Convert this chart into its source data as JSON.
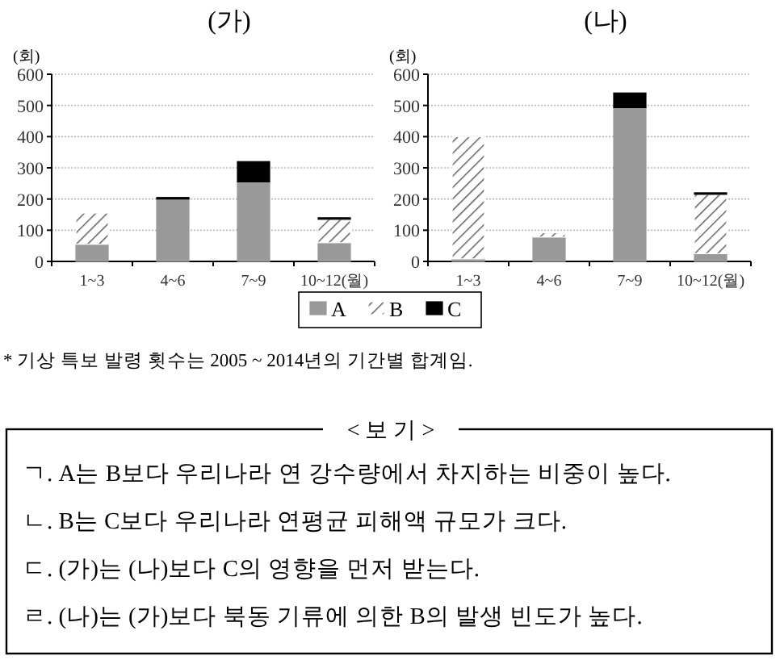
{
  "chart_data": [
    {
      "type": "bar",
      "title": "(가)",
      "ylabel": "(회)",
      "categories": [
        "1~3",
        "4~6",
        "7~9",
        "10~12(월)"
      ],
      "stacked": true,
      "grid": "y",
      "legend": "bottom",
      "ylim": [
        0,
        600
      ],
      "yticks": [
        0,
        100,
        200,
        300,
        400,
        500,
        600
      ],
      "series": [
        {
          "name": "A",
          "color": "#999999",
          "values": [
            55,
            200,
            255,
            60
          ]
        },
        {
          "name": "B",
          "color": "#ffffff",
          "values": [
            100,
            0,
            0,
            75
          ]
        },
        {
          "name": "C",
          "color": "#000000",
          "values": [
            0,
            5,
            65,
            5
          ]
        }
      ],
      "annotations": [
        "* 기상 특보 발령 횟수는 2005 ~ 2014년의 기간별 합계임."
      ]
    },
    {
      "type": "bar",
      "title": "(나)",
      "ylabel": "(회)",
      "categories": [
        "1~3",
        "4~6",
        "7~9",
        "10~12(월)"
      ],
      "stacked": true,
      "grid": "y",
      "legend": "bottom",
      "ylim": [
        0,
        600
      ],
      "yticks": [
        0,
        100,
        200,
        300,
        400,
        500,
        600
      ],
      "series": [
        {
          "name": "A",
          "color": "#999999",
          "values": [
            8,
            78,
            493,
            25
          ]
        },
        {
          "name": "B",
          "color": "#ffffff",
          "values": [
            392,
            14,
            0,
            190
          ]
        },
        {
          "name": "C",
          "color": "#000000",
          "values": [
            0,
            0,
            47,
            5
          ]
        }
      ]
    },
    {
      "type": "other",
      "title": "< 보 기 >",
      "annotations": [
        "ㄱ. A는 B보다 우리나라 연 강수량에서 차지하는 비중이 높다.",
        "ㄴ. B는 C보다 우리나라 연평균 피해액 규모가 크다.",
        "ㄷ. (가)는 (나)보다 C의 영향을 먼저 받는다.",
        "ㄹ. (나)는 (가)보다 북동 기류에 의한 B의 발생 빈도가 높다."
      ]
    }
  ]
}
